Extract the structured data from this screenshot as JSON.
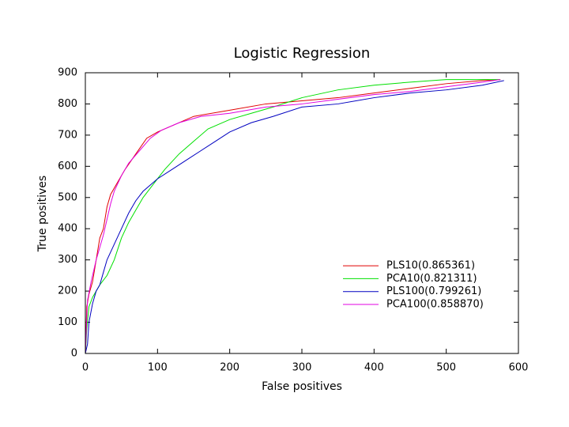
{
  "chart_data": {
    "type": "line",
    "title": "Logistic Regression",
    "x_label": "False positives",
    "y_label": "True positives",
    "xlim": [
      0,
      600
    ],
    "ylim": [
      0,
      900
    ],
    "xticks": [
      0,
      100,
      200,
      300,
      400,
      500,
      600
    ],
    "yticks": [
      0,
      100,
      200,
      300,
      400,
      500,
      600,
      700,
      800,
      900
    ],
    "grid": false,
    "legend": "lower right",
    "series": [
      {
        "name": "PLS10(0.865361)",
        "color": "#e00000",
        "x": [
          0,
          2,
          5,
          10,
          15,
          20,
          25,
          30,
          35,
          45,
          55,
          70,
          85,
          100,
          120,
          150,
          200,
          250,
          300,
          350,
          400,
          450,
          500,
          550,
          575
        ],
        "values": [
          0,
          150,
          190,
          230,
          300,
          370,
          400,
          470,
          510,
          550,
          590,
          640,
          690,
          710,
          730,
          760,
          780,
          800,
          810,
          820,
          835,
          850,
          865,
          875,
          878
        ]
      },
      {
        "name": "PCA10(0.821311)",
        "color": "#00e000",
        "x": [
          0,
          2,
          5,
          10,
          20,
          30,
          40,
          50,
          60,
          70,
          80,
          90,
          100,
          110,
          130,
          150,
          170,
          200,
          230,
          260,
          300,
          350,
          400,
          450,
          500,
          550,
          575
        ],
        "values": [
          0,
          80,
          150,
          180,
          220,
          250,
          300,
          370,
          420,
          460,
          500,
          530,
          560,
          590,
          640,
          680,
          720,
          750,
          770,
          790,
          820,
          845,
          860,
          870,
          878,
          878,
          878
        ]
      },
      {
        "name": "PLS100(0.799261)",
        "color": "#0000c0",
        "x": [
          0,
          3,
          5,
          10,
          15,
          20,
          25,
          30,
          40,
          50,
          60,
          70,
          80,
          100,
          120,
          140,
          160,
          180,
          200,
          230,
          260,
          300,
          350,
          400,
          450,
          500,
          550,
          580
        ],
        "values": [
          0,
          30,
          100,
          160,
          200,
          220,
          260,
          300,
          350,
          400,
          450,
          490,
          520,
          560,
          590,
          620,
          650,
          680,
          710,
          740,
          760,
          790,
          800,
          820,
          835,
          845,
          860,
          875
        ]
      },
      {
        "name": "PCA100(0.858870)",
        "color": "#e000e0",
        "x": [
          0,
          3,
          8,
          15,
          20,
          25,
          30,
          35,
          40,
          50,
          60,
          75,
          90,
          105,
          130,
          160,
          200,
          250,
          300,
          350,
          400,
          450,
          500,
          550,
          575
        ],
        "values": [
          0,
          170,
          230,
          300,
          340,
          380,
          430,
          480,
          520,
          570,
          610,
          650,
          690,
          715,
          740,
          760,
          770,
          790,
          800,
          815,
          830,
          840,
          855,
          870,
          878
        ]
      }
    ]
  }
}
